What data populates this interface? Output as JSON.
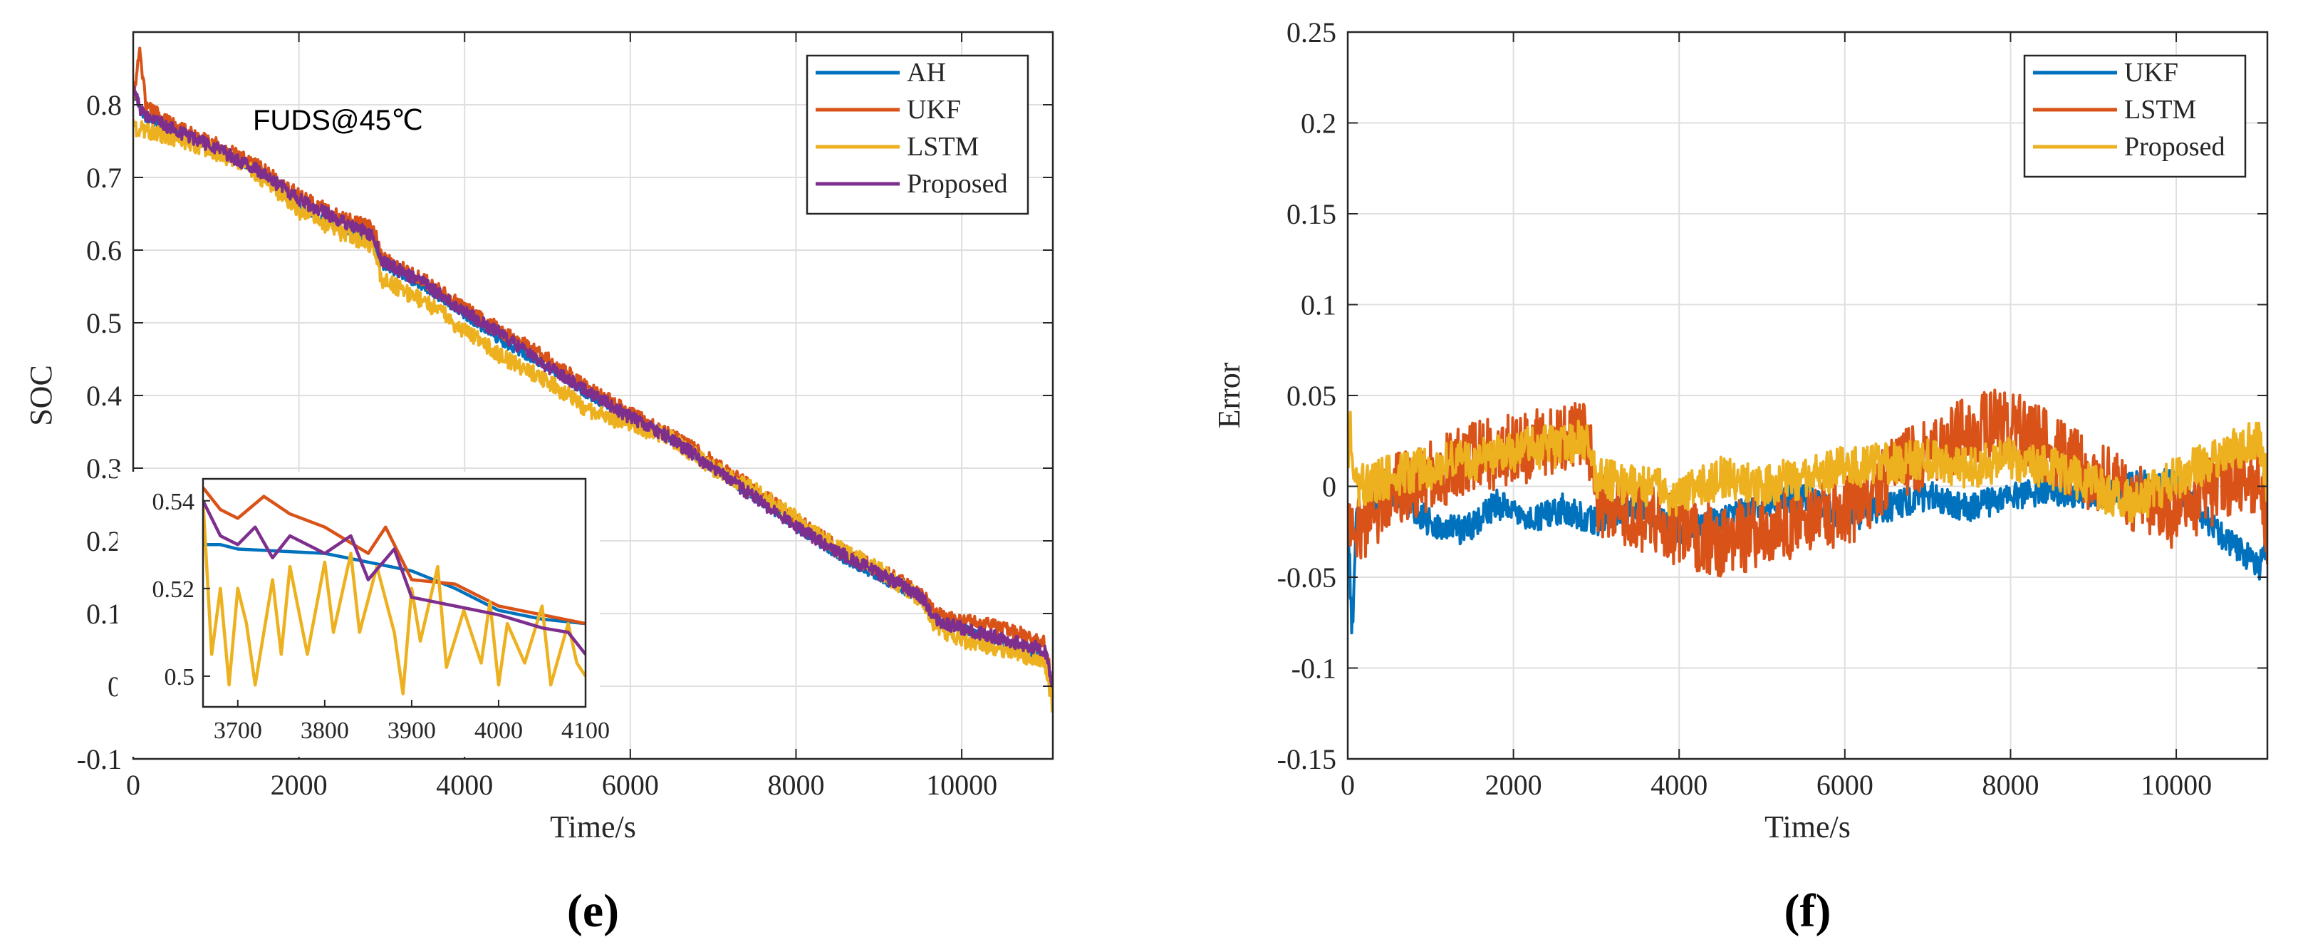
{
  "chart_data": [
    {
      "type": "line",
      "panel_label": "(e)",
      "title": "",
      "annotation": "FUDS@45℃",
      "xlabel": "Time/s",
      "ylabel": "SOC",
      "xlim": [
        0,
        11100
      ],
      "ylim": [
        -0.1,
        0.9
      ],
      "xticks": [
        0,
        2000,
        4000,
        6000,
        8000,
        10000
      ],
      "xtick_labels": [
        "0",
        "2000",
        "4000",
        "6000",
        "8000",
        "10000"
      ],
      "yticks": [
        -0.1,
        0,
        0.1,
        0.2,
        0.3,
        0.4,
        0.5,
        0.6,
        0.7,
        0.8
      ],
      "ytick_labels": [
        "-0.1",
        "0",
        "0.1",
        "0.2",
        "0.3",
        "0.4",
        "0.5",
        "0.6",
        "0.7",
        "0.8"
      ],
      "grid": true,
      "legend": "top-right",
      "series": [
        {
          "name": "AH",
          "color": "#0072BD",
          "x": [
            0,
            150,
            500,
            1000,
            1500,
            2000,
            2500,
            2900,
            3000,
            3500,
            4000,
            4500,
            5000,
            5500,
            6000,
            6500,
            7000,
            7500,
            8000,
            8500,
            9000,
            9500,
            9700,
            10000,
            10500,
            11000,
            11100
          ],
          "y": [
            0.82,
            0.78,
            0.765,
            0.74,
            0.71,
            0.66,
            0.63,
            0.61,
            0.58,
            0.55,
            0.51,
            0.47,
            0.44,
            0.4,
            0.37,
            0.34,
            0.3,
            0.26,
            0.22,
            0.18,
            0.15,
            0.12,
            0.09,
            0.08,
            0.06,
            0.04,
            0.0
          ]
        },
        {
          "name": "UKF",
          "color": "#D95319",
          "x": [
            0,
            80,
            150,
            500,
            1000,
            1500,
            2000,
            2500,
            2900,
            3000,
            3500,
            4000,
            4500,
            5000,
            5500,
            6000,
            6500,
            7000,
            7500,
            8000,
            8500,
            9000,
            9500,
            9700,
            10000,
            10500,
            11000,
            11100
          ],
          "y": [
            0.8,
            0.88,
            0.8,
            0.77,
            0.745,
            0.715,
            0.675,
            0.645,
            0.63,
            0.59,
            0.56,
            0.52,
            0.485,
            0.45,
            0.41,
            0.375,
            0.345,
            0.31,
            0.27,
            0.23,
            0.19,
            0.16,
            0.13,
            0.1,
            0.09,
            0.08,
            0.06,
            0.0
          ]
        },
        {
          "name": "LSTM",
          "color": "#EDB120",
          "x": [
            0,
            500,
            1000,
            1500,
            2000,
            2500,
            2900,
            3000,
            3500,
            4000,
            4500,
            5000,
            5500,
            6000,
            6500,
            7000,
            7500,
            8000,
            8500,
            9000,
            9500,
            9700,
            10000,
            10500,
            11000,
            11100
          ],
          "y": [
            0.77,
            0.755,
            0.735,
            0.705,
            0.655,
            0.625,
            0.605,
            0.56,
            0.53,
            0.49,
            0.45,
            0.42,
            0.38,
            0.36,
            0.34,
            0.3,
            0.27,
            0.23,
            0.19,
            0.16,
            0.12,
            0.08,
            0.065,
            0.05,
            0.035,
            -0.03
          ]
        },
        {
          "name": "Proposed",
          "color": "#7E2F8E",
          "x": [
            0,
            100,
            500,
            1000,
            1500,
            2000,
            2500,
            2900,
            3000,
            3500,
            4000,
            4500,
            5000,
            5500,
            6000,
            6500,
            7000,
            7500,
            8000,
            8500,
            9000,
            9500,
            9700,
            10000,
            10500,
            11000,
            11100
          ],
          "y": [
            0.82,
            0.79,
            0.765,
            0.74,
            0.71,
            0.67,
            0.64,
            0.62,
            0.585,
            0.555,
            0.515,
            0.48,
            0.44,
            0.405,
            0.37,
            0.34,
            0.3,
            0.26,
            0.22,
            0.185,
            0.155,
            0.125,
            0.09,
            0.08,
            0.065,
            0.05,
            0.0
          ]
        }
      ],
      "inset": {
        "xlim": [
          3660,
          4100
        ],
        "ylim": [
          0.493,
          0.545
        ],
        "xticks": [
          3700,
          3800,
          3900,
          4000,
          4100
        ],
        "xtick_labels": [
          "3700",
          "3800",
          "3900",
          "4000",
          "4100"
        ],
        "yticks": [
          0.5,
          0.52,
          0.54
        ],
        "ytick_labels": [
          "0.5",
          "0.52",
          "0.54"
        ],
        "series": [
          {
            "name": "AH",
            "x": [
              3660,
              3680,
              3700,
              3800,
              3850,
              3900,
              3950,
              4000,
              4050,
              4100
            ],
            "y": [
              0.53,
              0.53,
              0.529,
              0.528,
              0.526,
              0.524,
              0.52,
              0.515,
              0.513,
              0.512
            ]
          },
          {
            "name": "UKF",
            "x": [
              3660,
              3680,
              3700,
              3730,
              3760,
              3800,
              3850,
              3870,
              3900,
              3950,
              4000,
              4050,
              4100
            ],
            "y": [
              0.543,
              0.538,
              0.536,
              0.541,
              0.537,
              0.534,
              0.528,
              0.534,
              0.522,
              0.521,
              0.516,
              0.514,
              0.512
            ]
          },
          {
            "name": "LSTM",
            "x": [
              3660,
              3670,
              3680,
              3690,
              3700,
              3710,
              3720,
              3740,
              3750,
              3760,
              3780,
              3800,
              3810,
              3830,
              3840,
              3860,
              3880,
              3890,
              3900,
              3910,
              3930,
              3940,
              3960,
              3980,
              3990,
              4000,
              4010,
              4030,
              4050,
              4060,
              4080,
              4090,
              4100
            ],
            "y": [
              0.54,
              0.505,
              0.52,
              0.498,
              0.52,
              0.512,
              0.498,
              0.522,
              0.505,
              0.525,
              0.505,
              0.526,
              0.51,
              0.528,
              0.51,
              0.525,
              0.51,
              0.496,
              0.52,
              0.508,
              0.525,
              0.502,
              0.515,
              0.503,
              0.517,
              0.498,
              0.512,
              0.503,
              0.516,
              0.498,
              0.512,
              0.503,
              0.5
            ]
          },
          {
            "name": "Proposed",
            "x": [
              3660,
              3680,
              3700,
              3720,
              3740,
              3760,
              3800,
              3830,
              3850,
              3880,
              3900,
              3950,
              4000,
              4050,
              4080,
              4100
            ],
            "y": [
              0.54,
              0.532,
              0.53,
              0.534,
              0.527,
              0.532,
              0.528,
              0.532,
              0.522,
              0.529,
              0.518,
              0.516,
              0.514,
              0.511,
              0.51,
              0.505
            ]
          }
        ]
      }
    },
    {
      "type": "line",
      "panel_label": "(f)",
      "title": "",
      "xlabel": "Time/s",
      "ylabel": "Error",
      "xlim": [
        0,
        11100
      ],
      "ylim": [
        -0.15,
        0.25
      ],
      "xticks": [
        0,
        2000,
        4000,
        6000,
        8000,
        10000
      ],
      "xtick_labels": [
        "0",
        "2000",
        "4000",
        "6000",
        "8000",
        "10000"
      ],
      "yticks": [
        -0.15,
        -0.1,
        -0.05,
        0,
        0.05,
        0.1,
        0.15,
        0.2,
        0.25
      ],
      "ytick_labels": [
        "-0.15",
        "-0.1",
        "-0.05",
        "0",
        "0.05",
        "0.1",
        "0.15",
        "0.2",
        "0.25"
      ],
      "grid": true,
      "legend": "top-right",
      "series": [
        {
          "name": "UKF",
          "color": "#0072BD",
          "x": [
            0,
            50,
            100,
            300,
            600,
            1000,
            1400,
            1800,
            2200,
            2600,
            3000,
            3500,
            4000,
            4500,
            5000,
            5500,
            6000,
            6500,
            7000,
            7500,
            8000,
            8500,
            9000,
            9500,
            10000,
            10300,
            10600,
            10900,
            11000,
            11100
          ],
          "y": [
            -0.005,
            -0.085,
            -0.02,
            -0.01,
            -0.005,
            -0.02,
            -0.025,
            -0.01,
            -0.018,
            -0.012,
            -0.02,
            -0.01,
            -0.025,
            -0.02,
            -0.01,
            -0.005,
            -0.018,
            -0.012,
            -0.005,
            -0.012,
            -0.005,
            -0.002,
            -0.005,
            0.0,
            0.002,
            -0.015,
            -0.03,
            -0.04,
            -0.045,
            -0.03
          ]
        },
        {
          "name": "LSTM",
          "color": "#D95319",
          "x": [
            0,
            200,
            600,
            1000,
            1500,
            2000,
            2500,
            2900,
            3000,
            3500,
            4000,
            4500,
            5000,
            5500,
            6000,
            6500,
            7000,
            7500,
            8000,
            8500,
            9000,
            9500,
            10000,
            10500,
            11000,
            11100
          ],
          "y": [
            -0.025,
            -0.02,
            0.0,
            0.005,
            0.015,
            0.02,
            0.025,
            0.028,
            -0.01,
            -0.015,
            -0.025,
            -0.03,
            -0.025,
            -0.02,
            -0.015,
            0.005,
            0.02,
            0.03,
            0.035,
            0.02,
            0.005,
            -0.005,
            -0.015,
            0.0,
            0.005,
            -0.025
          ]
        },
        {
          "name": "Proposed",
          "color": "#EDB120",
          "x": [
            0,
            30,
            100,
            500,
            1000,
            1500,
            2000,
            2500,
            2900,
            3000,
            3500,
            4000,
            4500,
            5000,
            5500,
            6000,
            6500,
            7000,
            7500,
            8000,
            8500,
            9000,
            9500,
            10000,
            10500,
            10800,
            11000,
            11100
          ],
          "y": [
            0.0,
            0.035,
            0.0,
            0.005,
            0.01,
            0.015,
            0.02,
            0.022,
            0.025,
            0.005,
            0.0,
            -0.005,
            0.005,
            0.0,
            0.005,
            0.01,
            0.012,
            0.015,
            0.01,
            0.015,
            0.01,
            0.0,
            -0.01,
            0.005,
            0.015,
            0.022,
            0.025,
            0.0
          ]
        }
      ]
    }
  ]
}
